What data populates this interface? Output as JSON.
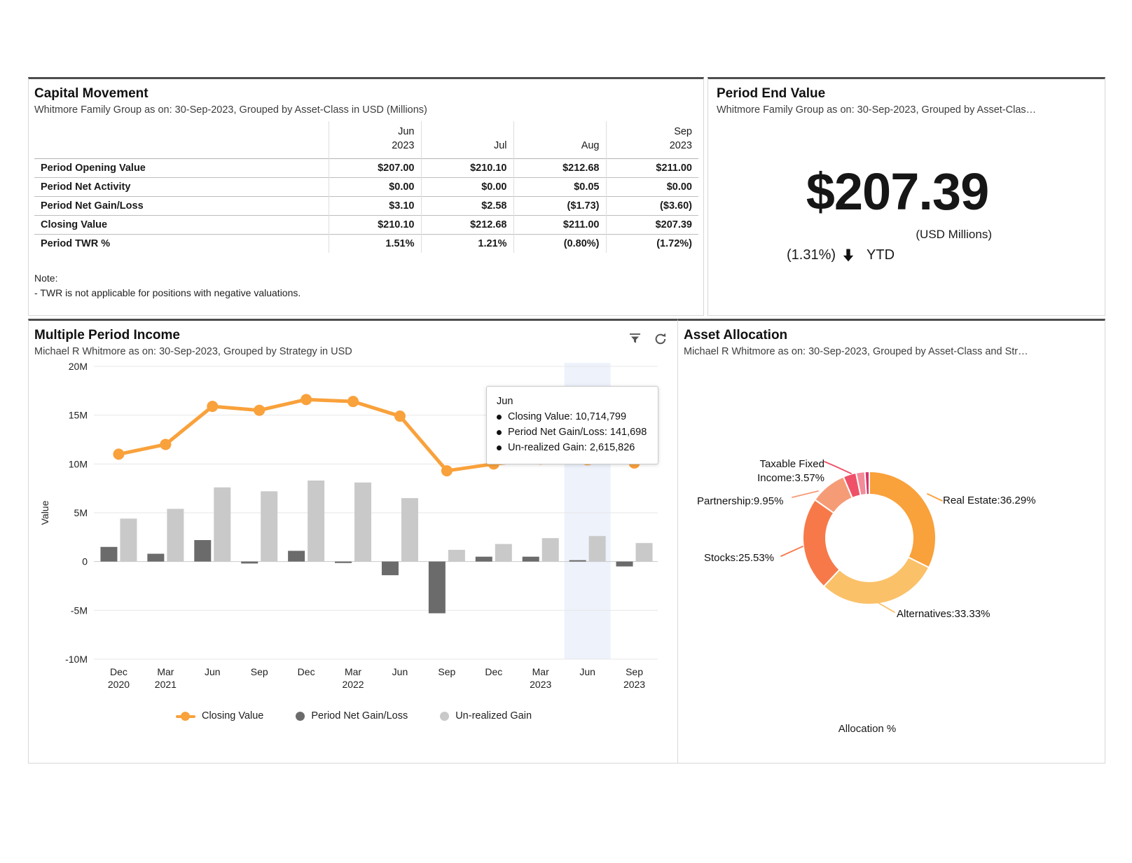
{
  "capital_movement": {
    "title": "Capital Movement",
    "subtitle": "Whitmore Family Group as on: 30-Sep-2023, Grouped by Asset-Class in USD (Millions)",
    "columns": [
      {
        "line1": "Jun",
        "line2": "2023"
      },
      {
        "line1": "",
        "line2": "Jul"
      },
      {
        "line1": "",
        "line2": "Aug"
      },
      {
        "line1": "Sep",
        "line2": "2023"
      }
    ],
    "rows": [
      {
        "label": "Period Opening Value",
        "values": [
          "$207.00",
          "$210.10",
          "$212.68",
          "$211.00"
        ]
      },
      {
        "label": "Period Net Activity",
        "values": [
          "$0.00",
          "$0.00",
          "$0.05",
          "$0.00"
        ]
      },
      {
        "label": "Period Net Gain/Loss",
        "values": [
          "$3.10",
          "$2.58",
          "($1.73)",
          "($3.60)"
        ]
      },
      {
        "label": "Closing Value",
        "values": [
          "$210.10",
          "$212.68",
          "$211.00",
          "$207.39"
        ]
      },
      {
        "label": "Period TWR %",
        "values": [
          "1.51%",
          "1.21%",
          "(0.80%)",
          "(1.72%)"
        ]
      }
    ],
    "note_title": "Note:",
    "note_body": "- TWR is not applicable for positions with negative valuations."
  },
  "period_end_value": {
    "title": "Period End Value",
    "subtitle": "Whitmore Family Group as on: 30-Sep-2023, Grouped by Asset-Clas…",
    "value": "$207.39",
    "unit": "(USD Millions)",
    "change": "(1.31%)",
    "change_direction": "down",
    "change_period": "YTD"
  },
  "multiple_period_income": {
    "title": "Multiple Period Income",
    "subtitle": "Michael R Whitmore as on: 30-Sep-2023, Grouped by Strategy in USD",
    "icons": [
      "filter-icon",
      "refresh-icon"
    ],
    "tooltip": {
      "title": "Jun",
      "items": [
        "Closing Value: 10,714,799",
        "Period Net Gain/Loss: 141,698",
        "Un-realized Gain: 2,615,826"
      ]
    }
  },
  "asset_allocation": {
    "title": "Asset Allocation",
    "subtitle": "Michael R Whitmore as on: 30-Sep-2023, Grouped by Asset-Class and Str…"
  },
  "chart_data": [
    {
      "id": "multiple-period-income",
      "type": "combo-bar-line",
      "title": "Multiple Period Income",
      "ylabel": "Value",
      "ylim": [
        -10000000,
        20000000
      ],
      "ytick_step": 5000000,
      "grid": true,
      "legend_position": "bottom",
      "highlight_category_index": 10,
      "highlight_color": "#EDF2FB",
      "categories": [
        [
          "Dec",
          "2020"
        ],
        [
          "Mar",
          "2021"
        ],
        [
          "Jun",
          ""
        ],
        [
          "Sep",
          ""
        ],
        [
          "Dec",
          ""
        ],
        [
          "Mar",
          "2022"
        ],
        [
          "Jun",
          ""
        ],
        [
          "Sep",
          ""
        ],
        [
          "Dec",
          ""
        ],
        [
          "Mar",
          "2023"
        ],
        [
          "Jun",
          ""
        ],
        [
          "Sep",
          "2023"
        ]
      ],
      "series": [
        {
          "name": "Closing Value",
          "type": "line",
          "color": "#F9A13B",
          "values": [
            11000000,
            12000000,
            15900000,
            15500000,
            16600000,
            16400000,
            14900000,
            9300000,
            10000000,
            10500000,
            10714799,
            10100000
          ]
        },
        {
          "name": "Period Net Gain/Loss",
          "type": "bar",
          "color": "#6B6B6B",
          "values": [
            1500000,
            800000,
            2200000,
            -200000,
            1100000,
            -150000,
            -1400000,
            -5300000,
            500000,
            500000,
            141698,
            -500000
          ]
        },
        {
          "name": "Un-realized Gain",
          "type": "bar",
          "color": "#C9C9C9",
          "values": [
            4400000,
            5400000,
            7600000,
            7200000,
            8300000,
            8100000,
            6500000,
            1200000,
            1800000,
            2400000,
            2615826,
            1900000
          ]
        }
      ]
    },
    {
      "id": "asset-allocation",
      "type": "donut",
      "title": "Asset Allocation",
      "footer": "Allocation %",
      "slices": [
        {
          "label": "Real Estate",
          "display": "Real Estate:36.29%",
          "pct": 36.29,
          "color": "#F9A13B"
        },
        {
          "label": "Alternatives",
          "display": "Alternatives:33.33%",
          "pct": 33.33,
          "color": "#FBC169"
        },
        {
          "label": "Stocks",
          "display": "Stocks:25.53%",
          "pct": 25.53,
          "color": "#F7794A"
        },
        {
          "label": "Partnership",
          "display": "Partnership:9.95%",
          "pct": 9.95,
          "color": "#F59C77"
        },
        {
          "label": "Taxable Fixed Income",
          "display": "Taxable Fixed Income:3.57%",
          "pct": 3.57,
          "color": "#EF5168"
        },
        {
          "label": "",
          "display": "",
          "pct": 2.4,
          "color": "#F28C98"
        },
        {
          "label": "",
          "display": "",
          "pct": 1.2,
          "color": "#D6336C"
        }
      ]
    }
  ]
}
